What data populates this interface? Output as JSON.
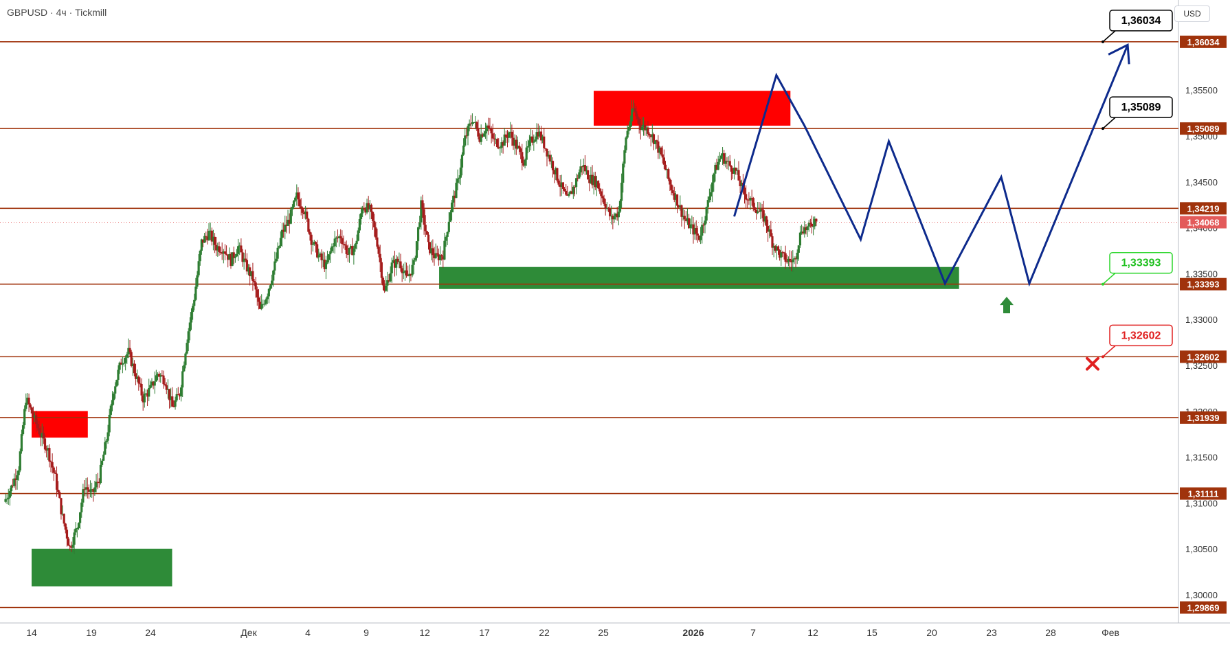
{
  "header": {
    "symbol": "GBPUSD",
    "timeframe": "4ч",
    "broker": "Tickmill",
    "separator": "·"
  },
  "currency_button": "USD",
  "colors": {
    "up_candle": "#2e7d32",
    "down_candle": "#a51c1c",
    "level_line": "#a0330c",
    "level_tag": "#a0330c",
    "current_price_tag": "#e35a5a",
    "resistance_zone": "#ff0000",
    "support_zone": "#2e8b38",
    "forecast_path": "#0d2a8c",
    "callout_green": "#2bd62b",
    "callout_red": "#e02020",
    "arrow_up": "#2e8b38",
    "cross": "#e02020"
  },
  "chart_data": {
    "type": "candlestick",
    "title": "GBPUSD · 4ч · Tickmill",
    "y_range": [
      1.2963,
      1.366
    ],
    "y_ticks": [
      "1,30000",
      "1,30500",
      "1,31000",
      "1,31500",
      "1,32000",
      "1,32500",
      "1,33000",
      "1,33500",
      "1,34000",
      "1,34500",
      "1,35000",
      "1,35500"
    ],
    "x_labels": [
      "14",
      "19",
      "24",
      "Дек",
      "4",
      "9",
      "12",
      "17",
      "22",
      "25",
      "2026",
      "7",
      "12",
      "15",
      "20",
      "23",
      "28",
      "Фев"
    ],
    "levels": [
      {
        "value": 1.36034,
        "label": "1,36034"
      },
      {
        "value": 1.35089,
        "label": "1,35089"
      },
      {
        "value": 1.34219,
        "label": "1,34219"
      },
      {
        "value": 1.33393,
        "label": "1,33393"
      },
      {
        "value": 1.32602,
        "label": "1,32602"
      },
      {
        "value": 1.31939,
        "label": "1,31939"
      },
      {
        "value": 1.31111,
        "label": "1,31111"
      },
      {
        "value": 1.29869,
        "label": "1,29869"
      }
    ],
    "current_price": {
      "value": 1.34068,
      "label": "1,34068"
    },
    "zones": [
      {
        "kind": "resistance",
        "x_from": "23 Dec",
        "x_to": "6 Jan",
        "y_from": 1.3512,
        "y_to": 1.355
      },
      {
        "kind": "support",
        "x_from": "12 Dec",
        "x_to": "18 Jan",
        "y_from": 1.3334,
        "y_to": 1.3358
      },
      {
        "kind": "resistance",
        "x_from": "13 Nov",
        "x_to": "17 Nov",
        "y_from": 1.3172,
        "y_to": 1.3201
      },
      {
        "kind": "support",
        "x_from": "13 Nov",
        "x_to": "23 Nov",
        "y_from": 1.301,
        "y_to": 1.3051
      }
    ],
    "callouts": [
      {
        "label": "1,36034",
        "value": 1.36034,
        "style": "neutral"
      },
      {
        "label": "1,35089",
        "value": 1.35089,
        "style": "neutral"
      },
      {
        "label": "1,33393",
        "value": 1.33393,
        "style": "buy"
      },
      {
        "label": "1,32602",
        "value": 1.32602,
        "style": "stop"
      }
    ],
    "forecast_path": [
      {
        "date": "2 Jan",
        "y": 1.3413
      },
      {
        "date": "5 Jan",
        "y": 1.3567
      },
      {
        "date": "7 Jan",
        "y": 1.3512
      },
      {
        "date": "11 Jan",
        "y": 1.3388
      },
      {
        "date": "13 Jan",
        "y": 1.3495
      },
      {
        "date": "17 Jan",
        "y": 1.334
      },
      {
        "date": "21 Jan",
        "y": 1.3456
      },
      {
        "date": "23 Jan",
        "y": 1.334
      },
      {
        "date": "30 Jan",
        "y": 1.36
      }
    ],
    "series": [
      {
        "name": "GBPUSD",
        "ohlc": "candlestick",
        "approx_path": [
          [
            1.3102,
            1.3118
          ],
          [
            1.314,
            1.3215
          ],
          [
            1.3195,
            1.3175
          ],
          [
            1.3158,
            1.3128
          ],
          [
            1.3085,
            1.3052
          ],
          [
            1.3075,
            1.312
          ],
          [
            1.311,
            1.3128
          ],
          [
            1.317,
            1.3225
          ],
          [
            1.3255,
            1.3265
          ],
          [
            1.324,
            1.3215
          ],
          [
            1.3225,
            1.3242
          ],
          [
            1.3235,
            1.3205
          ],
          [
            1.322,
            1.328
          ],
          [
            1.3325,
            1.3385
          ],
          [
            1.3395,
            1.338
          ],
          [
            1.3378,
            1.3365
          ],
          [
            1.338,
            1.336
          ],
          [
            1.3345,
            1.331
          ],
          [
            1.333,
            1.336
          ],
          [
            1.3395,
            1.341
          ],
          [
            1.3435,
            1.342
          ],
          [
            1.3388,
            1.337
          ],
          [
            1.3358,
            1.3385
          ],
          [
            1.3392,
            1.3372
          ],
          [
            1.338,
            1.3425
          ],
          [
            1.342,
            1.3385
          ],
          [
            1.333,
            1.336
          ],
          [
            1.3365,
            1.3345
          ],
          [
            1.336,
            1.3425
          ],
          [
            1.338,
            1.3368
          ],
          [
            1.3372,
            1.342
          ],
          [
            1.345,
            1.3498
          ],
          [
            1.352,
            1.35
          ],
          [
            1.3512,
            1.3495
          ],
          [
            1.3492,
            1.3505
          ],
          [
            1.349,
            1.3474
          ],
          [
            1.3495,
            1.3506
          ],
          [
            1.3488,
            1.3468
          ],
          [
            1.3448,
            1.343
          ],
          [
            1.3448,
            1.347
          ],
          [
            1.3455,
            1.345
          ],
          [
            1.343,
            1.341
          ],
          [
            1.3418,
            1.35
          ],
          [
            1.353,
            1.3512
          ],
          [
            1.3508,
            1.3495
          ],
          [
            1.3475,
            1.3448
          ],
          [
            1.343,
            1.341
          ],
          [
            1.34,
            1.339
          ],
          [
            1.342,
            1.346
          ],
          [
            1.348,
            1.347
          ],
          [
            1.3462,
            1.344
          ],
          [
            1.343,
            1.342
          ],
          [
            1.341,
            1.3385
          ],
          [
            1.3372,
            1.3365
          ],
          [
            1.3365,
            1.34
          ],
          [
            1.34,
            1.3412
          ]
        ]
      }
    ]
  }
}
